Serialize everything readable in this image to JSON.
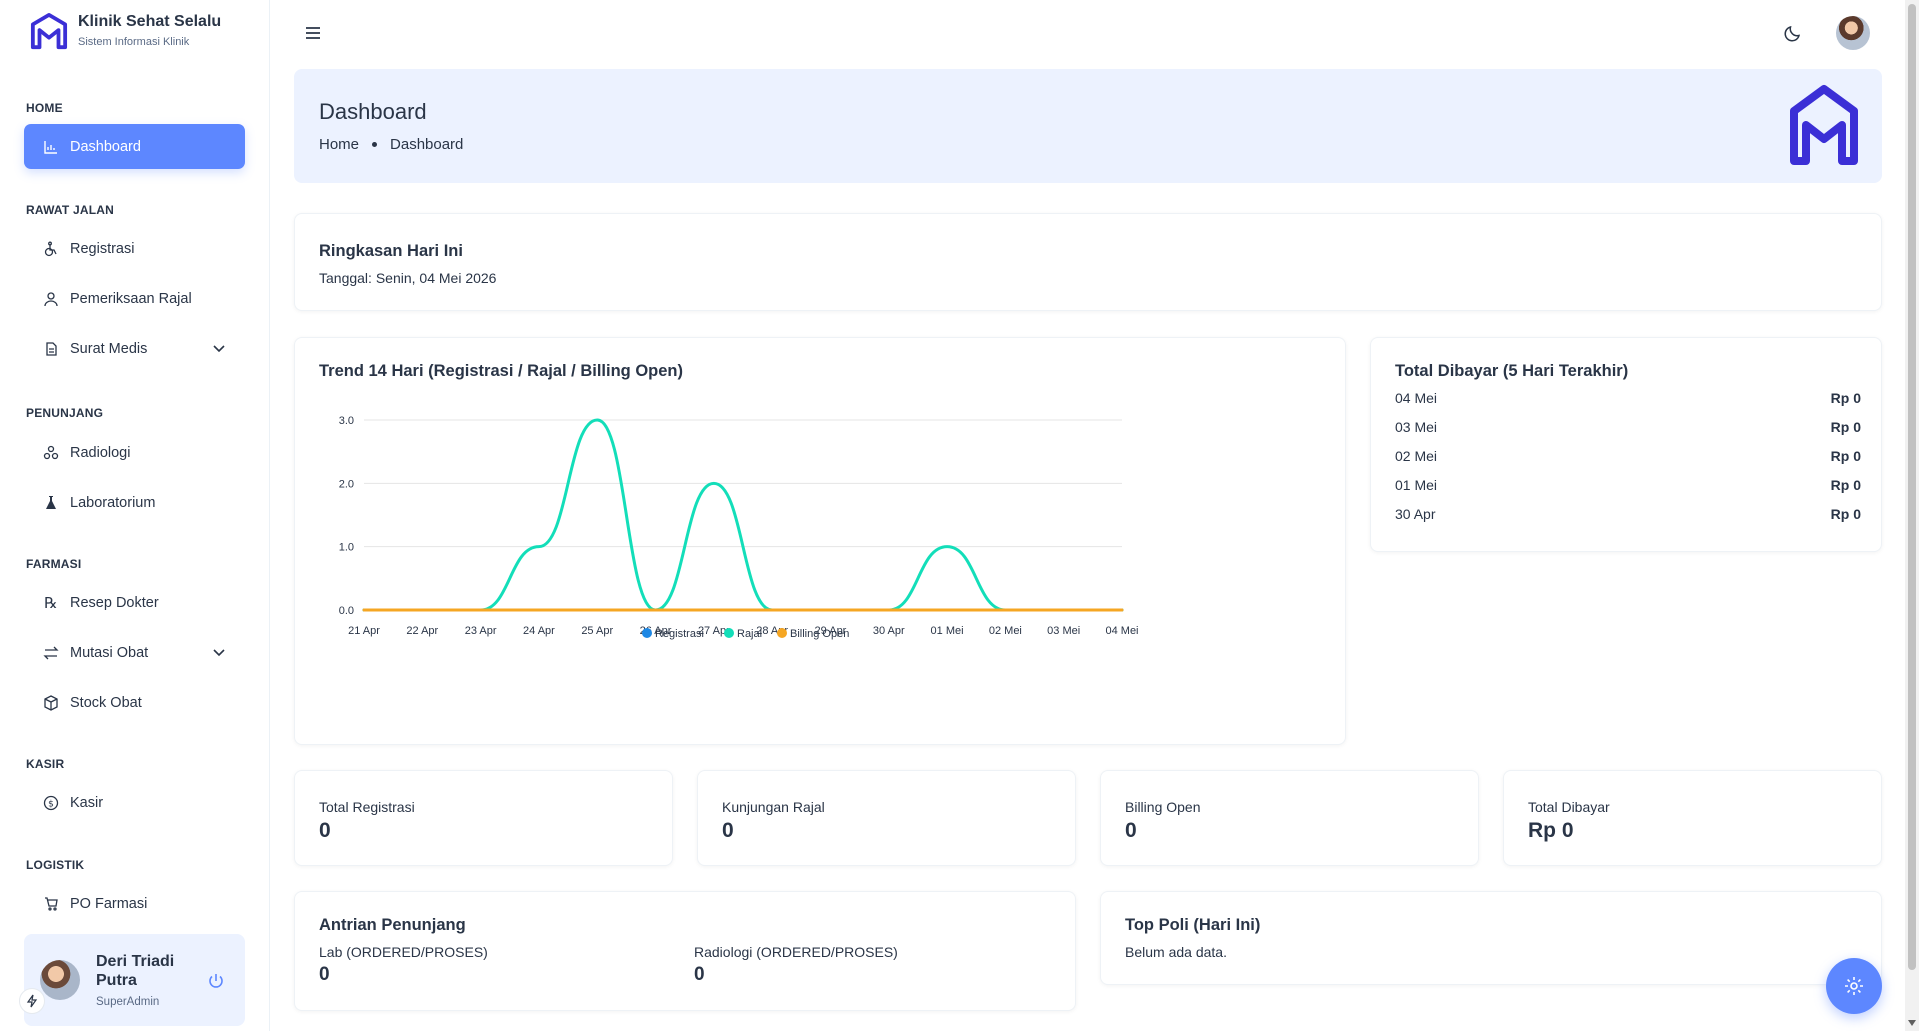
{
  "brand": {
    "title": "Klinik Sehat Selalu",
    "subtitle": "Sistem Informasi Klinik"
  },
  "sidebar": {
    "sections": [
      {
        "caption": "HOME",
        "items": [
          {
            "label": "Dashboard",
            "icon": "chart-icon",
            "active": true
          }
        ]
      },
      {
        "caption": "RAWAT JALAN",
        "items": [
          {
            "label": "Registrasi",
            "icon": "wheelchair-icon"
          },
          {
            "label": "Pemeriksaan Rajal",
            "icon": "stethoscope-icon"
          },
          {
            "label": "Surat Medis",
            "icon": "document-icon",
            "has_submenu": true
          }
        ]
      },
      {
        "caption": "PENUNJANG",
        "items": [
          {
            "label": "Radiologi",
            "icon": "radiology-icon"
          },
          {
            "label": "Laboratorium",
            "icon": "flask-icon"
          }
        ]
      },
      {
        "caption": "FARMASI",
        "items": [
          {
            "label": "Resep Dokter",
            "icon": "prescription-icon"
          },
          {
            "label": "Mutasi Obat",
            "icon": "transfer-icon",
            "has_submenu": true
          },
          {
            "label": "Stock Obat",
            "icon": "box-icon"
          }
        ]
      },
      {
        "caption": "KASIR",
        "items": [
          {
            "label": "Kasir",
            "icon": "coin-icon"
          }
        ]
      },
      {
        "caption": "LOGISTIK",
        "items": [
          {
            "label": "PO Farmasi",
            "icon": "cart-icon"
          }
        ]
      }
    ]
  },
  "user": {
    "name": "Deri Triadi Putra",
    "role": "SuperAdmin"
  },
  "header": {
    "title": "Dashboard",
    "breadcrumb": [
      "Home",
      "Dashboard"
    ]
  },
  "summary": {
    "title": "Ringkasan Hari Ini",
    "date_text": "Tanggal: Senin, 04 Mei 2026"
  },
  "trend": {
    "title": "Trend 14 Hari (Registrasi / Rajal / Billing Open)"
  },
  "chart_data": {
    "type": "line",
    "title": "Trend 14 Hari (Registrasi / Rajal / Billing Open)",
    "categories": [
      "21 Apr",
      "22 Apr",
      "23 Apr",
      "24 Apr",
      "25 Apr",
      "26 Apr",
      "27 Apr",
      "28 Apr",
      "29 Apr",
      "30 Apr",
      "01 Mei",
      "02 Mei",
      "03 Mei",
      "04 Mei"
    ],
    "yticks": [
      "0.0",
      "1.0",
      "2.0",
      "3.0"
    ],
    "ylim": [
      0,
      3
    ],
    "grid": true,
    "legend_position": "bottom",
    "series": [
      {
        "name": "Registrasi",
        "color": "#1e88e5",
        "values": [
          0,
          0,
          0,
          0,
          0,
          0,
          0,
          0,
          0,
          0,
          0,
          0,
          0,
          0
        ]
      },
      {
        "name": "Rajal",
        "color": "#13deb9",
        "values": [
          0,
          0,
          0,
          1,
          3,
          0,
          2,
          0,
          0,
          0,
          1,
          0,
          0,
          0
        ]
      },
      {
        "name": "Billing Open",
        "color": "#f5a623",
        "values": [
          0,
          0,
          0,
          0,
          0,
          0,
          0,
          0,
          0,
          0,
          0,
          0,
          0,
          0
        ]
      }
    ]
  },
  "paid": {
    "title": "Total Dibayar (5 Hari Terakhir)",
    "rows": [
      {
        "date": "04 Mei",
        "amount": "Rp 0"
      },
      {
        "date": "03 Mei",
        "amount": "Rp 0"
      },
      {
        "date": "02 Mei",
        "amount": "Rp 0"
      },
      {
        "date": "01 Mei",
        "amount": "Rp 0"
      },
      {
        "date": "30 Apr",
        "amount": "Rp 0"
      }
    ]
  },
  "stats": [
    {
      "label": "Total Registrasi",
      "value": "0"
    },
    {
      "label": "Kunjungan Rajal",
      "value": "0"
    },
    {
      "label": "Billing Open",
      "value": "0"
    },
    {
      "label": "Total Dibayar",
      "value": "Rp 0"
    }
  ],
  "queue": {
    "title": "Antrian Penunjang",
    "lab_label": "Lab (ORDERED/PROSES)",
    "lab_value": "0",
    "rad_label": "Radiologi (ORDERED/PROSES)",
    "rad_value": "0"
  },
  "top_poli": {
    "title": "Top Poli (Hari Ini)",
    "empty_text": "Belum ada data."
  },
  "colors": {
    "accent": "#5d87ff",
    "banner_bg": "#ecf2ff",
    "text": "#2a3547"
  }
}
